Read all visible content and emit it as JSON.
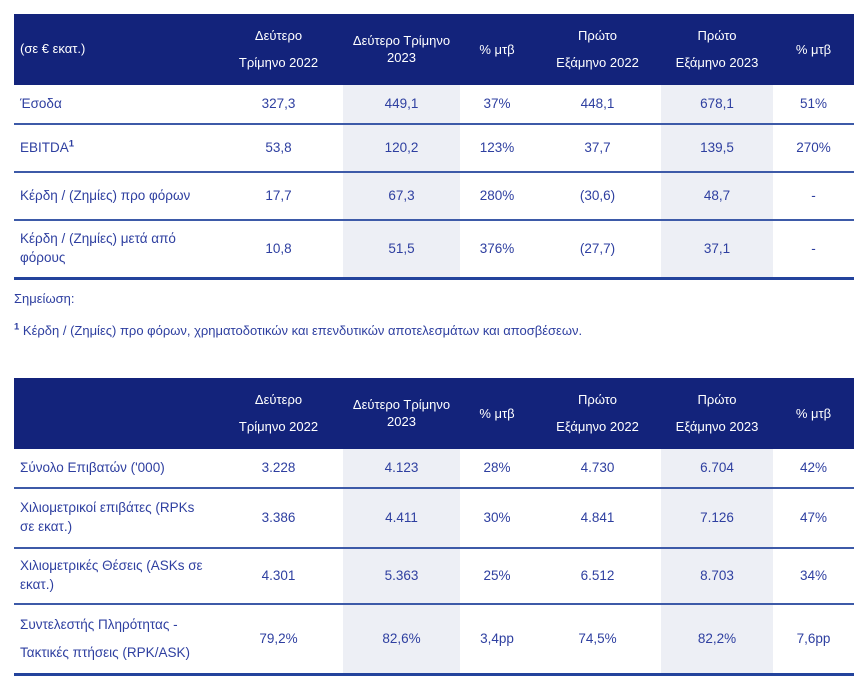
{
  "colors": {
    "header_bg": "#13237b",
    "header_text": "#ffffff",
    "body_text": "#2e3fa0",
    "shaded_column_bg": "#edeff5",
    "row_divider": "#3d5aa8",
    "table_border": "#23439c"
  },
  "table1": {
    "unit_label": "(σε € εκατ.)",
    "headers": {
      "q2_2022_l1": "Δεύτερο",
      "q2_2022_l2": "Τρίμηνο 2022",
      "q2_2023_l1": "Δεύτερο Τρίμηνο",
      "q2_2023_l2": "2023",
      "chg_q": "% μτβ",
      "h1_2022_l1": "Πρώτο",
      "h1_2022_l2": "Εξάμηνο 2022",
      "h1_2023_l1": "Πρώτο",
      "h1_2023_l2": "Εξάμηνο 2023",
      "chg_h": "% μτβ"
    },
    "rows": [
      {
        "label": "Έσοδα",
        "q2_2022": "327,3",
        "q2_2023": "449,1",
        "chg_q": "37%",
        "h1_2022": "448,1",
        "h1_2023": "678,1",
        "chg_h": "51%"
      },
      {
        "label": "EBITDA",
        "label_sup": "1",
        "q2_2022": "53,8",
        "q2_2023": "120,2",
        "chg_q": "123%",
        "h1_2022": "37,7",
        "h1_2023": "139,5",
        "chg_h": "270%"
      },
      {
        "label": "Κέρδη / (Ζημίες) προ φόρων",
        "q2_2022": "17,7",
        "q2_2023": "67,3",
        "chg_q": "280%",
        "h1_2022": "(30,6)",
        "h1_2023": "48,7",
        "chg_h": "-"
      },
      {
        "label": "Κέρδη / (Ζημίες) μετά από φόρους",
        "q2_2022": "10,8",
        "q2_2023": "51,5",
        "chg_q": "376%",
        "h1_2022": "(27,7)",
        "h1_2023": "37,1",
        "chg_h": "-"
      }
    ]
  },
  "notes": {
    "title": "Σημείωση:",
    "footnote_sup": "1",
    "footnote_text": " Κέρδη / (Ζημίες) προ φόρων, χρηματοδοτικών και επενδυτικών αποτελεσμάτων και αποσβέσεων."
  },
  "table2": {
    "unit_label": "",
    "headers": {
      "q2_2022_l1": "Δεύτερο",
      "q2_2022_l2": "Τρίμηνο 2022",
      "q2_2023_l1": "Δεύτερο Τρίμηνο",
      "q2_2023_l2": "2023",
      "chg_q": "% μτβ",
      "h1_2022_l1": "Πρώτο",
      "h1_2022_l2": "Εξάμηνο 2022",
      "h1_2023_l1": "Πρώτο",
      "h1_2023_l2": "Εξάμηνο 2023",
      "chg_h": "% μτβ"
    },
    "rows": [
      {
        "label": "Σύνολο Επιβατών ('000)",
        "q2_2022": "3.228",
        "q2_2023": "4.123",
        "chg_q": "28%",
        "h1_2022": "4.730",
        "h1_2023": "6.704",
        "chg_h": "42%"
      },
      {
        "label": "Χιλιομετρικοί επιβάτες (RPKs σε εκατ.)",
        "q2_2022": "3.386",
        "q2_2023": "4.411",
        "chg_q": "30%",
        "h1_2022": "4.841",
        "h1_2023": "7.126",
        "chg_h": "47%"
      },
      {
        "label": "Χιλιομετρικές Θέσεις (ASKs σε εκατ.)",
        "q2_2022": "4.301",
        "q2_2023": "5.363",
        "chg_q": "25%",
        "h1_2022": "6.512",
        "h1_2023": "8.703",
        "chg_h": "34%"
      },
      {
        "label_l1": "Συντελεστής Πληρότητας -",
        "label_l2": "Τακτικές πτήσεις (RPK/ASK)",
        "q2_2022": "79,2%",
        "q2_2023": "82,6%",
        "chg_q": "3,4pp",
        "h1_2022": "74,5%",
        "h1_2023": "82,2%",
        "chg_h": "7,6pp"
      }
    ]
  }
}
